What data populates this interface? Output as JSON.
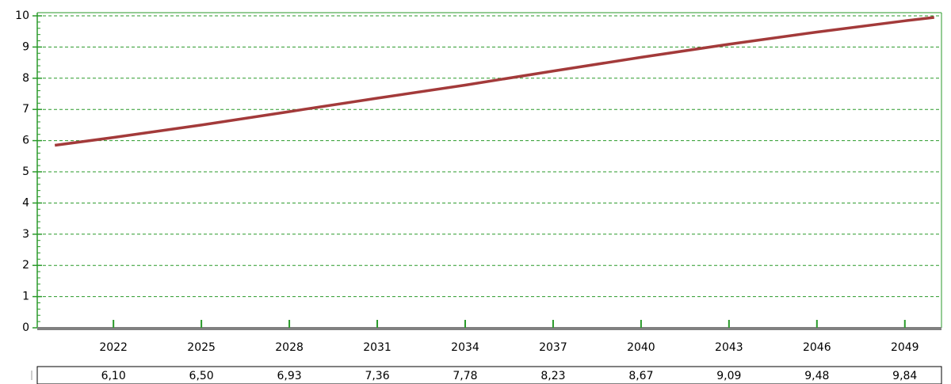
{
  "chart_data": {
    "type": "line",
    "x": [
      2020,
      2022,
      2025,
      2028,
      2031,
      2034,
      2037,
      2040,
      2043,
      2046,
      2049,
      2050
    ],
    "series": [
      {
        "color": "#a33a3a",
        "values": [
          5.85,
          6.1,
          6.5,
          6.93,
          7.36,
          7.78,
          8.23,
          8.67,
          9.09,
          9.48,
          9.84,
          9.95
        ],
        "value_labels": [
          null,
          "6,10",
          "6,50",
          "6,93",
          "7,36",
          "7,78",
          "8,23",
          "8,67",
          "9,09",
          "9,48",
          "9,84",
          null
        ]
      }
    ],
    "xlim": [
      2019.4,
      2050.25
    ],
    "xticks": [
      2022,
      2025,
      2028,
      2031,
      2034,
      2037,
      2040,
      2043,
      2046,
      2049
    ],
    "ylim": [
      0,
      10
    ],
    "yticks": [
      0,
      1,
      2,
      3,
      4,
      5,
      6,
      7,
      8,
      9,
      10
    ],
    "grid": true
  }
}
